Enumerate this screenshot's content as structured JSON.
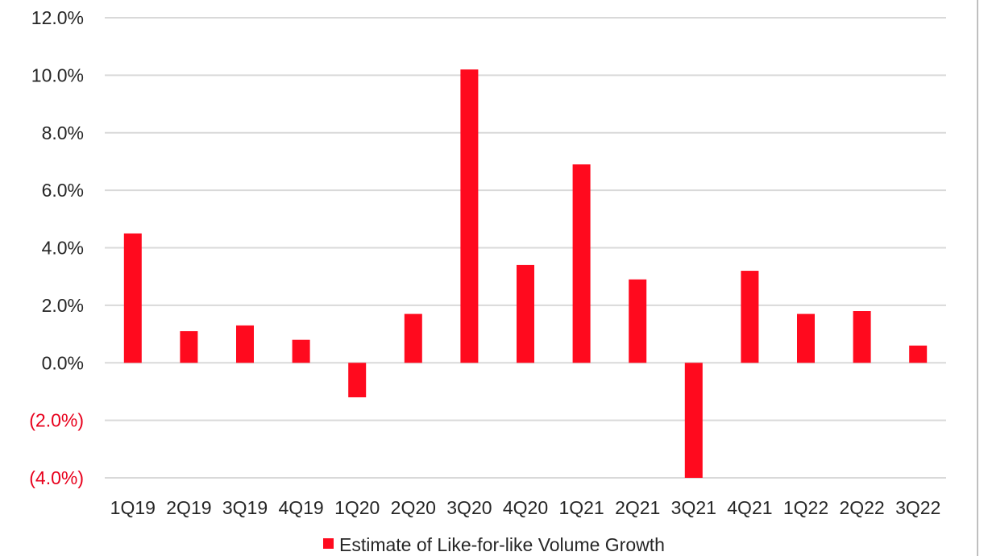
{
  "chart_data": {
    "type": "bar",
    "categories": [
      "1Q19",
      "2Q19",
      "3Q19",
      "4Q19",
      "1Q20",
      "2Q20",
      "3Q20",
      "4Q20",
      "1Q21",
      "2Q21",
      "3Q21",
      "4Q21",
      "1Q22",
      "2Q22",
      "3Q22"
    ],
    "series": [
      {
        "name": "Estimate of Like-for-like Volume Growth",
        "values": [
          4.5,
          1.1,
          1.3,
          0.8,
          -1.2,
          1.7,
          10.2,
          3.4,
          6.9,
          2.9,
          -4.0,
          3.2,
          1.7,
          1.8,
          0.6
        ],
        "color": "#ff0a1e"
      }
    ],
    "ylim": [
      -4.0,
      12.0
    ],
    "y_ticks": [
      {
        "value": 12,
        "label": "12.0%"
      },
      {
        "value": 10,
        "label": "10.0%"
      },
      {
        "value": 8,
        "label": "8.0%"
      },
      {
        "value": 6,
        "label": "6.0%"
      },
      {
        "value": 4,
        "label": "4.0%"
      },
      {
        "value": 2,
        "label": "2.0%"
      },
      {
        "value": 0,
        "label": "0.0%"
      },
      {
        "value": -2,
        "label": "(2.0%)"
      },
      {
        "value": -4,
        "label": "(4.0%)"
      }
    ],
    "negative_label_color": "#e8001c",
    "grid": true,
    "legend_position": "bottom"
  }
}
